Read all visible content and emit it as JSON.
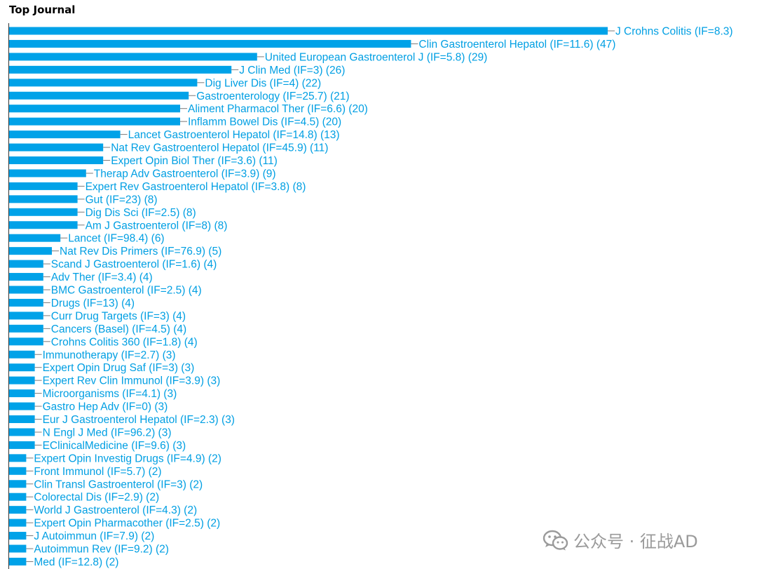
{
  "header": {
    "title": "Top Journal"
  },
  "colors": {
    "bar": "#00a2e8",
    "label": "#009fe3",
    "axis": "#333333"
  },
  "chart_data": {
    "type": "bar",
    "orientation": "horizontal",
    "title": "Top Journal",
    "xlabel": "",
    "ylabel": "",
    "grid": false,
    "xlim": [
      0,
      74
    ],
    "categories": [
      "J Crohns Colitis (IF=8.3)",
      "Clin Gastroenterol Hepatol (IF=11.6) (47)",
      "United European Gastroenterol J (IF=5.8) (29)",
      "J Clin Med (IF=3) (26)",
      "Dig Liver Dis (IF=4) (22)",
      "Gastroenterology (IF=25.7) (21)",
      "Aliment Pharmacol Ther (IF=6.6) (20)",
      "Inflamm Bowel Dis (IF=4.5) (20)",
      "Lancet Gastroenterol Hepatol (IF=14.8) (13)",
      "Nat Rev Gastroenterol Hepatol (IF=45.9) (11)",
      "Expert Opin Biol Ther (IF=3.6) (11)",
      "Therap Adv Gastroenterol (IF=3.9) (9)",
      "Expert Rev Gastroenterol Hepatol (IF=3.8) (8)",
      "Gut (IF=23) (8)",
      "Dig Dis Sci (IF=2.5) (8)",
      "Am J Gastroenterol (IF=8) (8)",
      "Lancet (IF=98.4) (6)",
      "Nat Rev Dis Primers (IF=76.9) (5)",
      "Scand J Gastroenterol (IF=1.6) (4)",
      "Adv Ther (IF=3.4) (4)",
      "BMC Gastroenterol (IF=2.5) (4)",
      "Drugs (IF=13) (4)",
      "Curr Drug Targets (IF=3) (4)",
      "Cancers (Basel) (IF=4.5) (4)",
      "Crohns Colitis 360 (IF=1.8) (4)",
      "Immunotherapy (IF=2.7) (3)",
      "Expert Opin Drug Saf (IF=3) (3)",
      "Expert Rev Clin Immunol (IF=3.9) (3)",
      "Microorganisms (IF=4.1) (3)",
      "Gastro Hep Adv (IF=0) (3)",
      "Eur J Gastroenterol Hepatol (IF=2.3) (3)",
      "N Engl J Med (IF=96.2) (3)",
      "EClinicalMedicine (IF=9.6) (3)",
      "Expert Opin Investig Drugs (IF=4.9) (2)",
      "Front Immunol (IF=5.7) (2)",
      "Clin Transl Gastroenterol (IF=3) (2)",
      "Colorectal Dis (IF=2.9) (2)",
      "World J Gastroenterol (IF=4.3) (2)",
      "Expert Opin Pharmacother (IF=2.5) (2)",
      "J Autoimmun (IF=7.9) (2)",
      "Autoimmun Rev (IF=9.2) (2)",
      "Med (IF=12.8) (2)"
    ],
    "values": [
      70,
      47,
      29,
      26,
      22,
      21,
      20,
      20,
      13,
      11,
      11,
      9,
      8,
      8,
      8,
      8,
      6,
      5,
      4,
      4,
      4,
      4,
      4,
      4,
      4,
      3,
      3,
      3,
      3,
      3,
      3,
      3,
      3,
      2,
      2,
      2,
      2,
      2,
      2,
      2,
      2,
      2
    ]
  },
  "watermark": {
    "text": "公众号 · 征战AD",
    "icon": "wechat-icon"
  }
}
